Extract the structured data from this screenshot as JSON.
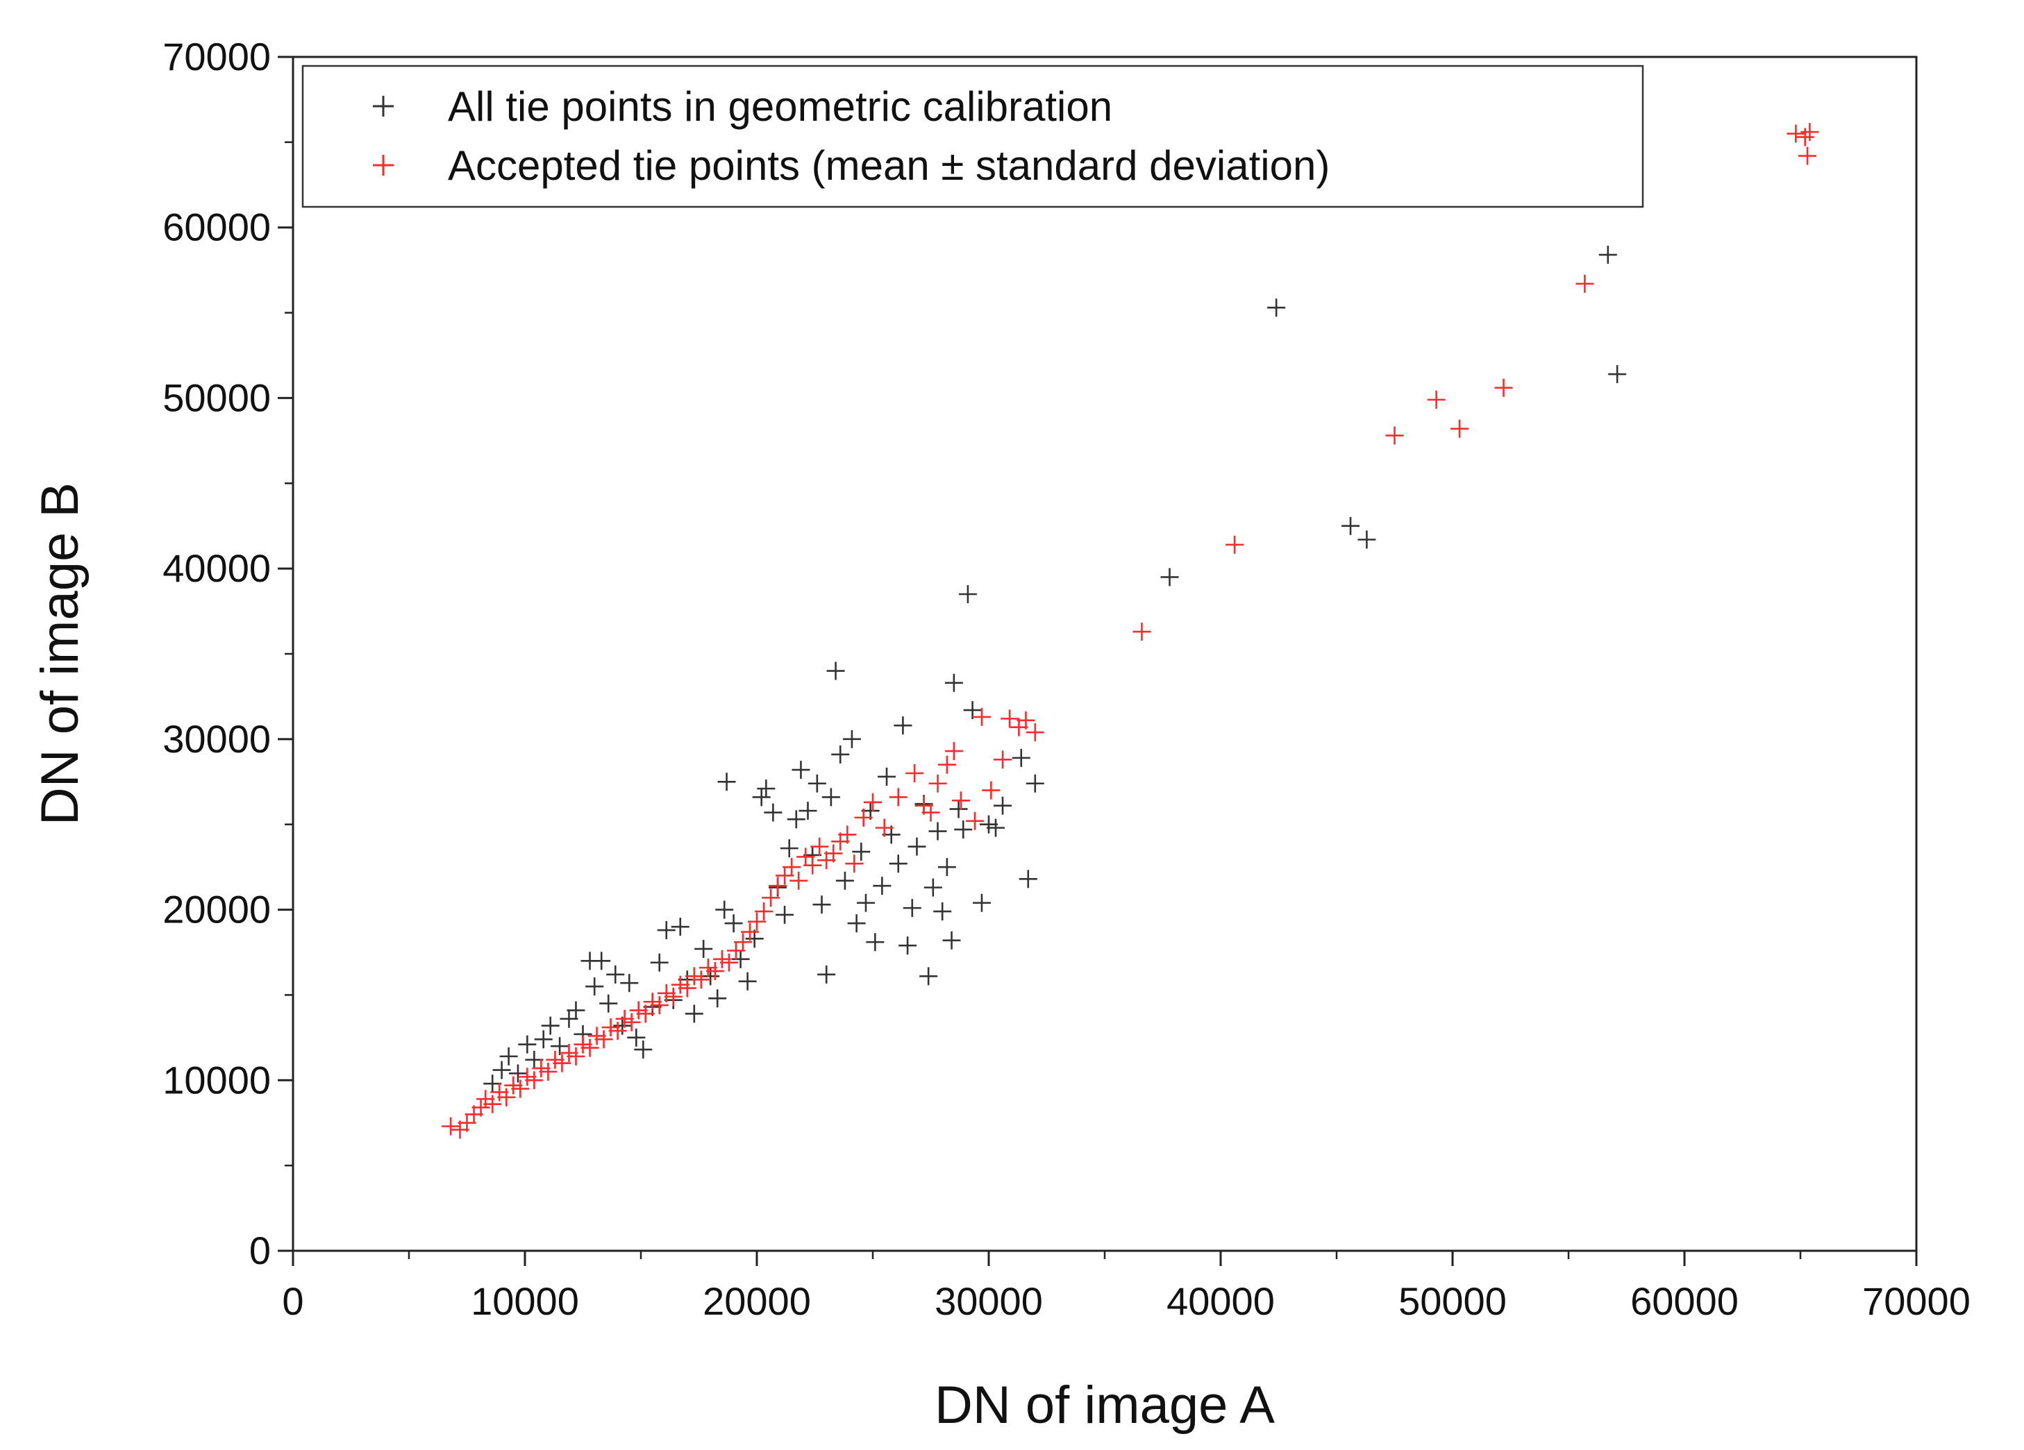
{
  "chart_data": {
    "type": "scatter",
    "title": "",
    "xlabel": "DN of image A",
    "ylabel": "DN of image B",
    "xlim": [
      0,
      70000
    ],
    "ylim": [
      0,
      70000
    ],
    "xticks": [
      "0",
      "10000",
      "20000",
      "30000",
      "40000",
      "50000",
      "60000",
      "70000"
    ],
    "yticks": [
      "0",
      "10000",
      "20000",
      "30000",
      "40000",
      "50000",
      "60000",
      "70000"
    ],
    "grid": false,
    "legend_position": "top-left",
    "marker": "plus",
    "series": [
      {
        "name": "All tie points in geometric calibration",
        "color": "#333333",
        "points": [
          [
            8600,
            9800
          ],
          [
            9000,
            10600
          ],
          [
            9300,
            11400
          ],
          [
            9700,
            10400
          ],
          [
            10100,
            12100
          ],
          [
            10400,
            11200
          ],
          [
            10800,
            12400
          ],
          [
            11100,
            13200
          ],
          [
            11500,
            12000
          ],
          [
            11900,
            13600
          ],
          [
            12200,
            14100
          ],
          [
            12500,
            12700
          ],
          [
            12800,
            17000
          ],
          [
            13300,
            17000
          ],
          [
            13000,
            15500
          ],
          [
            13600,
            14500
          ],
          [
            13900,
            16200
          ],
          [
            14200,
            13200
          ],
          [
            14500,
            15700
          ],
          [
            14800,
            12500
          ],
          [
            15100,
            11800
          ],
          [
            15500,
            14300
          ],
          [
            15800,
            16900
          ],
          [
            16100,
            18800
          ],
          [
            16400,
            14700
          ],
          [
            16700,
            19000
          ],
          [
            17000,
            15900
          ],
          [
            17300,
            13900
          ],
          [
            17700,
            17700
          ],
          [
            18000,
            16100
          ],
          [
            18300,
            14800
          ],
          [
            18600,
            20000
          ],
          [
            18700,
            27500
          ],
          [
            19000,
            19200
          ],
          [
            19300,
            17100
          ],
          [
            19600,
            15800
          ],
          [
            19900,
            18300
          ],
          [
            20200,
            26600
          ],
          [
            20400,
            27100
          ],
          [
            20700,
            25700
          ],
          [
            20900,
            21300
          ],
          [
            21200,
            19700
          ],
          [
            21400,
            23600
          ],
          [
            21700,
            25300
          ],
          [
            21900,
            28200
          ],
          [
            22200,
            25800
          ],
          [
            22400,
            23200
          ],
          [
            22600,
            27400
          ],
          [
            22800,
            20300
          ],
          [
            23000,
            16200
          ],
          [
            23200,
            26600
          ],
          [
            23400,
            34000
          ],
          [
            23600,
            29100
          ],
          [
            23800,
            21700
          ],
          [
            24100,
            30000
          ],
          [
            24300,
            19200
          ],
          [
            24500,
            23400
          ],
          [
            24700,
            20400
          ],
          [
            24900,
            25800
          ],
          [
            25100,
            18100
          ],
          [
            25400,
            21400
          ],
          [
            25600,
            27800
          ],
          [
            25800,
            24400
          ],
          [
            26100,
            22700
          ],
          [
            26300,
            30800
          ],
          [
            26500,
            17900
          ],
          [
            26700,
            20100
          ],
          [
            26900,
            23700
          ],
          [
            27200,
            26200
          ],
          [
            27400,
            16100
          ],
          [
            27600,
            21300
          ],
          [
            27800,
            24600
          ],
          [
            28000,
            19900
          ],
          [
            28200,
            22500
          ],
          [
            28400,
            18200
          ],
          [
            28500,
            33300
          ],
          [
            28700,
            25900
          ],
          [
            28900,
            24700
          ],
          [
            29100,
            38500
          ],
          [
            29300,
            31700
          ],
          [
            29700,
            20400
          ],
          [
            30000,
            25000
          ],
          [
            30300,
            24800
          ],
          [
            30600,
            26100
          ],
          [
            31400,
            28900
          ],
          [
            31700,
            21800
          ],
          [
            32000,
            27400
          ],
          [
            37800,
            39500
          ],
          [
            42400,
            55300
          ],
          [
            45600,
            42500
          ],
          [
            46300,
            41700
          ],
          [
            56700,
            58400
          ],
          [
            57100,
            51400
          ]
        ]
      },
      {
        "name": "Accepted tie points (mean ± standard deviation)",
        "color": "#ff2a2a",
        "points": [
          [
            6800,
            7300
          ],
          [
            7200,
            7100
          ],
          [
            7500,
            7500
          ],
          [
            7800,
            8000
          ],
          [
            8100,
            8400
          ],
          [
            8300,
            8900
          ],
          [
            8600,
            8600
          ],
          [
            8900,
            9300
          ],
          [
            9200,
            9000
          ],
          [
            9500,
            9700
          ],
          [
            9800,
            9500
          ],
          [
            10100,
            10200
          ],
          [
            10400,
            10000
          ],
          [
            10700,
            10700
          ],
          [
            11000,
            10500
          ],
          [
            11300,
            11200
          ],
          [
            11600,
            11000
          ],
          [
            11900,
            11600
          ],
          [
            12200,
            11400
          ],
          [
            12500,
            12100
          ],
          [
            12800,
            11900
          ],
          [
            13100,
            12600
          ],
          [
            13400,
            12400
          ],
          [
            13700,
            13100
          ],
          [
            14000,
            12900
          ],
          [
            14300,
            13600
          ],
          [
            14600,
            13400
          ],
          [
            14900,
            14100
          ],
          [
            15200,
            13900
          ],
          [
            15500,
            14600
          ],
          [
            15800,
            14400
          ],
          [
            16100,
            15100
          ],
          [
            16400,
            14900
          ],
          [
            16700,
            15600
          ],
          [
            17000,
            15400
          ],
          [
            17300,
            16100
          ],
          [
            17600,
            15900
          ],
          [
            17900,
            16600
          ],
          [
            18200,
            16400
          ],
          [
            18500,
            17100
          ],
          [
            18800,
            16900
          ],
          [
            19100,
            17600
          ],
          [
            19400,
            18100
          ],
          [
            19700,
            18700
          ],
          [
            20000,
            19300
          ],
          [
            20300,
            19900
          ],
          [
            20600,
            20700
          ],
          [
            20900,
            21400
          ],
          [
            21200,
            22000
          ],
          [
            21500,
            22500
          ],
          [
            21800,
            21700
          ],
          [
            22100,
            23100
          ],
          [
            22400,
            22600
          ],
          [
            22700,
            23700
          ],
          [
            23000,
            22900
          ],
          [
            23300,
            23300
          ],
          [
            23600,
            24000
          ],
          [
            23900,
            24400
          ],
          [
            24200,
            22700
          ],
          [
            24600,
            25400
          ],
          [
            25000,
            26300
          ],
          [
            25500,
            24800
          ],
          [
            26100,
            26600
          ],
          [
            26800,
            28000
          ],
          [
            27200,
            26100
          ],
          [
            27500,
            25700
          ],
          [
            27800,
            27400
          ],
          [
            28200,
            28500
          ],
          [
            28500,
            29300
          ],
          [
            28800,
            26400
          ],
          [
            29400,
            25200
          ],
          [
            29700,
            31300
          ],
          [
            30100,
            27000
          ],
          [
            30600,
            28800
          ],
          [
            30900,
            31200
          ],
          [
            31300,
            30700
          ],
          [
            31600,
            31100
          ],
          [
            32000,
            30400
          ],
          [
            36600,
            36300
          ],
          [
            40600,
            41400
          ],
          [
            47500,
            47800
          ],
          [
            49300,
            49900
          ],
          [
            50300,
            48200
          ],
          [
            52200,
            50600
          ],
          [
            55700,
            56700
          ],
          [
            64800,
            65500
          ],
          [
            65300,
            64200
          ],
          [
            65400,
            65600
          ],
          [
            65200,
            65300
          ]
        ]
      }
    ]
  }
}
